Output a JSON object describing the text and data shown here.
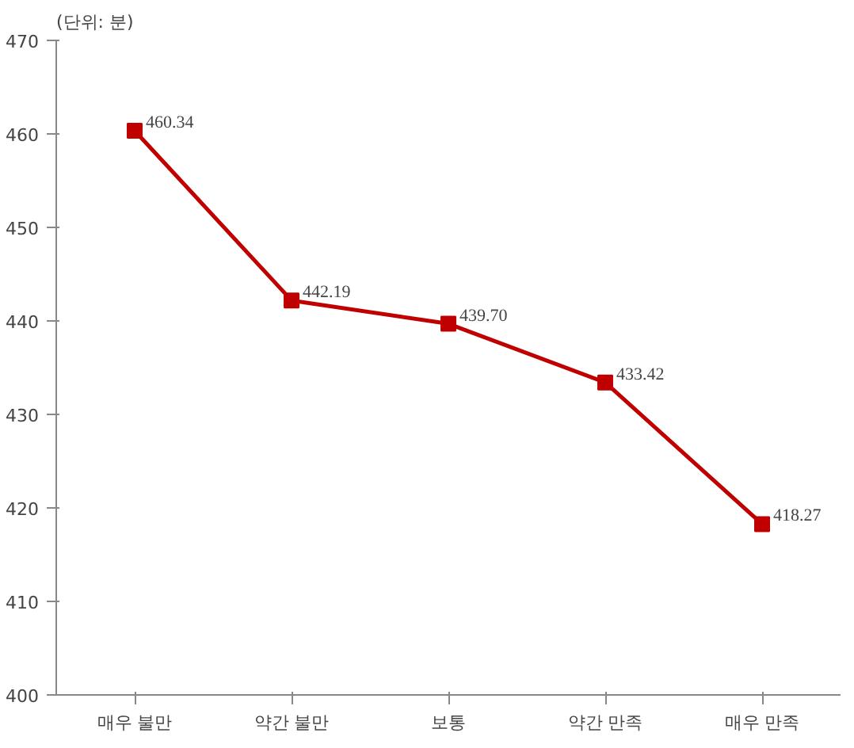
{
  "chart_data": {
    "type": "line",
    "ylabel": "(단위: 분)",
    "categories": [
      "매우 불만",
      "약간 불만",
      "보통",
      "약간 만족",
      "매우 만족"
    ],
    "series": [
      {
        "color": "#c00000",
        "values": [
          460.34,
          442.19,
          439.7,
          433.42,
          418.27
        ],
        "value_labels": [
          "460.34",
          "442.19",
          "439.70",
          "433.42",
          "418.27"
        ]
      }
    ],
    "ylim": [
      400,
      470
    ],
    "yticks": [
      400,
      410,
      420,
      430,
      440,
      450,
      460,
      470
    ],
    "marker": "square",
    "line_style": "solid",
    "grid": false
  }
}
